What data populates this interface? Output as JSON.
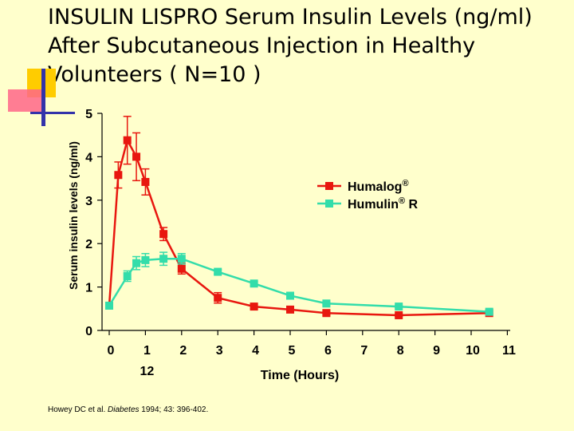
{
  "title": "INSULIN LISPRO Serum Insulin Levels (ng/ml) After Subcutaneous Injection in Healthy Volunteers ( N=10 )",
  "colors": {
    "background": "#FFFFCC",
    "humalog": "#E8170F",
    "humulin": "#33DDAA",
    "accent_yellow": "#FFCC00",
    "accent_pink": "#FF6688",
    "accent_blue": "#3333AA"
  },
  "citation": {
    "authors": "Howey  DC et al.",
    "journal": "Diabetes",
    "rest": "1994; 43: 396-402."
  },
  "chart_data": {
    "type": "line",
    "xlabel": "Time (Hours)",
    "ylabel": "Serum insulin levels (ng/ml)",
    "xlim": [
      -0.1,
      11
    ],
    "ylim": [
      0,
      5
    ],
    "x_ticks": [
      "0",
      "1",
      "2",
      "3",
      "4",
      "5",
      "6",
      "7",
      "8",
      "9",
      "10",
      "11"
    ],
    "x_tick_sublabel": {
      "at": "1",
      "text": "12"
    },
    "y_ticks": [
      "0",
      "1",
      "2",
      "3",
      "4",
      "5"
    ],
    "legend_position": "right",
    "series": [
      {
        "name": "Humalog®",
        "color": "#E8170F",
        "points": [
          {
            "x": 0,
            "y": 0.57,
            "err": 0
          },
          {
            "x": 0.25,
            "y": 3.58,
            "err": 0.3
          },
          {
            "x": 0.5,
            "y": 4.38,
            "err": 0.55
          },
          {
            "x": 0.75,
            "y": 4.0,
            "err": 0.55
          },
          {
            "x": 1.0,
            "y": 3.42,
            "err": 0.3
          },
          {
            "x": 1.5,
            "y": 2.22,
            "err": 0.15
          },
          {
            "x": 2.0,
            "y": 1.42,
            "err": 0.12
          },
          {
            "x": 3.0,
            "y": 0.75,
            "err": 0.12
          },
          {
            "x": 4.0,
            "y": 0.55,
            "err": 0.05
          },
          {
            "x": 5.0,
            "y": 0.48,
            "err": 0.05
          },
          {
            "x": 6.0,
            "y": 0.4,
            "err": 0.04
          },
          {
            "x": 8.0,
            "y": 0.35,
            "err": 0.03
          },
          {
            "x": 10.5,
            "y": 0.4,
            "err": 0
          }
        ]
      },
      {
        "name": "Humulin® R",
        "color": "#33DDAA",
        "points": [
          {
            "x": 0,
            "y": 0.57,
            "err": 0
          },
          {
            "x": 0.5,
            "y": 1.25,
            "err": 0.12
          },
          {
            "x": 0.75,
            "y": 1.55,
            "err": 0.15
          },
          {
            "x": 1.0,
            "y": 1.62,
            "err": 0.15
          },
          {
            "x": 1.5,
            "y": 1.65,
            "err": 0.15
          },
          {
            "x": 2.0,
            "y": 1.65,
            "err": 0.12
          },
          {
            "x": 3.0,
            "y": 1.35,
            "err": 0.05
          },
          {
            "x": 4.0,
            "y": 1.08,
            "err": 0.05
          },
          {
            "x": 5.0,
            "y": 0.8,
            "err": 0.04
          },
          {
            "x": 6.0,
            "y": 0.62,
            "err": 0.03
          },
          {
            "x": 8.0,
            "y": 0.55,
            "err": 0.03
          },
          {
            "x": 10.5,
            "y": 0.43,
            "err": 0
          }
        ]
      }
    ]
  }
}
